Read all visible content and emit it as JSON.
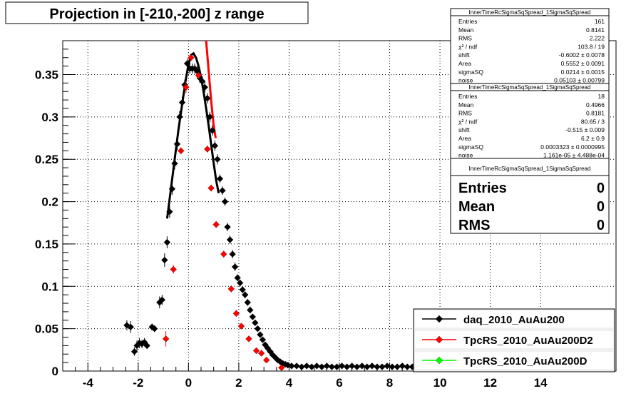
{
  "title": "Projection in [-210,-200] z range",
  "stats_boxes": [
    {
      "header": "InnerTimeRcSigmaSqSpread_1SigmaSqSpread",
      "rows": [
        {
          "label": "Entries",
          "value": "161"
        },
        {
          "label": "Mean",
          "value": "0.8141"
        },
        {
          "label": "RMS",
          "value": "2.222"
        },
        {
          "label": "χ² / ndf",
          "value": "103.8 / 19"
        },
        {
          "label": "shift",
          "value": "-0.6002 ± 0.0078"
        },
        {
          "label": "Area",
          "value": "0.5552 ± 0.0091"
        },
        {
          "label": "sigmaSQ",
          "value": "0.0214 ± 0.0015"
        },
        {
          "label": "noise",
          "value": "0.05103 ± 0.00799"
        }
      ]
    },
    {
      "header": "InnerTimeRcSigmaSqSpread_1SigmaSqSpread",
      "rows": [
        {
          "label": "Entries",
          "value": "18"
        },
        {
          "label": "Mean",
          "value": "0.4966"
        },
        {
          "label": "RMS",
          "value": "0.8181"
        },
        {
          "label": "χ² / ndf",
          "value": "80.65 / 3"
        },
        {
          "label": "shift",
          "value": "-0.515 ± 0.009"
        },
        {
          "label": "Area",
          "value": "6.2 ± 0.9"
        },
        {
          "label": "sigmaSQ",
          "value": "0.0003323 ± 0.0000995"
        },
        {
          "label": "noise",
          "value": "1.161e-05 ± 4.488e-04"
        }
      ]
    },
    {
      "header": "InnerTimeRcSigmaSqSpread_1SigmaSqSpread",
      "rows": [
        {
          "label": "Entries",
          "value": "0"
        },
        {
          "label": "Mean",
          "value": "0"
        },
        {
          "label": "RMS",
          "value": "0"
        }
      ]
    }
  ],
  "colors": {
    "black_series": "#000000",
    "red_series": "#ff0000",
    "green_series": "#00ff00",
    "fit_black": "#000000",
    "fit_red": "#ff0000",
    "grid": "#000000"
  },
  "chart_data": {
    "type": "scatter",
    "title": "Projection in [-210,-200] z range",
    "xlabel": "",
    "ylabel": "",
    "xlim": [
      -5,
      17
    ],
    "ylim": [
      0,
      0.39
    ],
    "x_ticks": [
      -4,
      -2,
      0,
      2,
      4,
      6,
      8,
      10,
      12,
      14
    ],
    "y_ticks": [
      0,
      0.05,
      0.1,
      0.15,
      0.2,
      0.25,
      0.3,
      0.35
    ],
    "y_tick_labels": [
      "0",
      "0.05",
      "0.1",
      "0.15",
      "0.2",
      "0.25",
      "0.3",
      "0.35"
    ],
    "grid": true,
    "legend_position": "bottom-right",
    "legend": [
      {
        "name": "daq_2010_AuAu200",
        "color": "#000000"
      },
      {
        "name": "TpcRS_2010_AuAu200D2",
        "color": "#ff0000"
      },
      {
        "name": "TpcRS_2010_AuAu200D",
        "color": "#00ff00"
      }
    ],
    "series": [
      {
        "name": "daq_2010_AuAu200",
        "color": "#000000",
        "points": [
          [
            -2.45,
            0.054,
            0.006
          ],
          [
            -2.3,
            0.052,
            0.007
          ],
          [
            -2.15,
            0.023,
            0.005
          ],
          [
            -2.05,
            0.03,
            0.006
          ],
          [
            -1.95,
            0.033,
            0.006
          ],
          [
            -1.85,
            0.032,
            0.005
          ],
          [
            -1.75,
            0.034,
            0.005
          ],
          [
            -1.65,
            0.03,
            0.004
          ],
          [
            -1.45,
            0.052,
            0.004
          ],
          [
            -1.35,
            0.05,
            0.004
          ],
          [
            -1.15,
            0.081,
            0.007
          ],
          [
            -1.05,
            0.084,
            0.006
          ],
          [
            -0.95,
            0.131,
            0.008
          ],
          [
            -0.85,
            0.152,
            0.007
          ],
          [
            -0.75,
            0.188,
            0.007
          ],
          [
            -0.65,
            0.215,
            0.007
          ],
          [
            -0.55,
            0.245,
            0.007
          ],
          [
            -0.45,
            0.268,
            0.007
          ],
          [
            -0.35,
            0.3,
            0.007
          ],
          [
            -0.25,
            0.317,
            0.007
          ],
          [
            -0.15,
            0.338,
            0.006
          ],
          [
            -0.05,
            0.363,
            0.006
          ],
          [
            0.05,
            0.357,
            0.006
          ],
          [
            0.15,
            0.357,
            0.006
          ],
          [
            0.25,
            0.357,
            0.006
          ],
          [
            0.35,
            0.354,
            0.006
          ],
          [
            0.45,
            0.346,
            0.006
          ],
          [
            0.55,
            0.342,
            0.006
          ],
          [
            0.65,
            0.335,
            0.006
          ],
          [
            0.75,
            0.322,
            0.006
          ],
          [
            0.85,
            0.3,
            0.006
          ],
          [
            0.95,
            0.284,
            0.006
          ],
          [
            1.05,
            0.266,
            0.006
          ],
          [
            1.15,
            0.25,
            0.006
          ],
          [
            1.25,
            0.227,
            0.005
          ],
          [
            1.35,
            0.213,
            0.005
          ],
          [
            1.45,
            0.2,
            0.005
          ],
          [
            1.55,
            0.17,
            0.005
          ],
          [
            1.65,
            0.155,
            0.005
          ],
          [
            1.75,
            0.138,
            0.005
          ],
          [
            1.85,
            0.123,
            0.005
          ],
          [
            1.95,
            0.11,
            0.004
          ],
          [
            2.05,
            0.104,
            0.004
          ],
          [
            2.15,
            0.096,
            0.004
          ],
          [
            2.25,
            0.09,
            0.004
          ],
          [
            2.35,
            0.081,
            0.004
          ],
          [
            2.45,
            0.072,
            0.004
          ],
          [
            2.55,
            0.064,
            0.003
          ],
          [
            2.65,
            0.057,
            0.003
          ],
          [
            2.75,
            0.05,
            0.003
          ],
          [
            2.85,
            0.043,
            0.003
          ],
          [
            2.95,
            0.037,
            0.003
          ],
          [
            3.05,
            0.031,
            0.003
          ],
          [
            3.15,
            0.027,
            0.003
          ],
          [
            3.25,
            0.023,
            0.002
          ],
          [
            3.35,
            0.019,
            0.002
          ],
          [
            3.45,
            0.016,
            0.002
          ],
          [
            3.55,
            0.013,
            0.002
          ],
          [
            3.65,
            0.011,
            0.002
          ],
          [
            3.75,
            0.009,
            0.002
          ],
          [
            3.85,
            0.008,
            0.002
          ],
          [
            3.95,
            0.007,
            0.002
          ],
          [
            4.1,
            0.006,
            0.002
          ],
          [
            4.3,
            0.006,
            0.002
          ],
          [
            4.5,
            0.005,
            0.002
          ],
          [
            4.7,
            0.006,
            0.002
          ],
          [
            4.9,
            0.005,
            0.002
          ],
          [
            5.1,
            0.006,
            0.002
          ],
          [
            5.3,
            0.005,
            0.002
          ],
          [
            5.5,
            0.006,
            0.002
          ],
          [
            5.7,
            0.005,
            0.002
          ],
          [
            5.9,
            0.005,
            0.002
          ],
          [
            6.1,
            0.006,
            0.002
          ],
          [
            6.3,
            0.005,
            0.002
          ],
          [
            6.5,
            0.006,
            0.002
          ],
          [
            6.7,
            0.005,
            0.002
          ],
          [
            6.9,
            0.006,
            0.002
          ],
          [
            7.1,
            0.005,
            0.002
          ],
          [
            7.3,
            0.006,
            0.002
          ],
          [
            7.5,
            0.005,
            0.002
          ],
          [
            7.7,
            0.005,
            0.002
          ],
          [
            7.9,
            0.006,
            0.002
          ],
          [
            8.1,
            0.005,
            0.002
          ],
          [
            8.3,
            0.005,
            0.002
          ],
          [
            8.5,
            0.006,
            0.002
          ],
          [
            8.7,
            0.005,
            0.002
          ],
          [
            8.9,
            0.005,
            0.002
          ],
          [
            9.1,
            0.006,
            0.002
          ],
          [
            9.3,
            0.005,
            0.002
          ]
        ]
      },
      {
        "name": "TpcRS_2010_AuAu200D2",
        "color": "#ff0000",
        "points": [
          [
            -0.9,
            0.038,
            0.009
          ],
          [
            -0.6,
            0.12,
            0.005
          ],
          [
            -0.3,
            0.26,
            0.004
          ],
          [
            -0.1,
            0.335,
            0.007
          ],
          [
            0.1,
            0.37,
            0.004
          ],
          [
            0.4,
            0.349,
            0.004
          ],
          [
            0.75,
            0.262,
            0.004
          ],
          [
            0.9,
            0.216,
            0.004
          ],
          [
            1.1,
            0.173,
            0.004
          ],
          [
            1.4,
            0.138,
            0.004
          ],
          [
            1.7,
            0.097,
            0.004
          ],
          [
            1.9,
            0.068,
            0.004
          ],
          [
            2.1,
            0.053,
            0.003
          ],
          [
            2.4,
            0.038,
            0.003
          ],
          [
            2.7,
            0.024,
            0.003
          ],
          [
            2.9,
            0.021,
            0.002
          ],
          [
            3.1,
            0.013,
            0.002
          ],
          [
            3.7,
            0.004,
            0.002
          ]
        ]
      },
      {
        "name": "TpcRS_2010_AuAu200D",
        "color": "#00ff00",
        "points": []
      }
    ],
    "fits": [
      {
        "color": "#000000",
        "curve": [
          [
            -0.85,
            0.18
          ],
          [
            -0.7,
            0.215
          ],
          [
            -0.55,
            0.25
          ],
          [
            -0.4,
            0.285
          ],
          [
            -0.25,
            0.315
          ],
          [
            -0.1,
            0.345
          ],
          [
            0.0,
            0.362
          ],
          [
            0.1,
            0.373
          ],
          [
            0.2,
            0.375
          ],
          [
            0.3,
            0.37
          ],
          [
            0.4,
            0.36
          ],
          [
            0.5,
            0.347
          ],
          [
            0.6,
            0.33
          ],
          [
            0.7,
            0.31
          ],
          [
            0.8,
            0.29
          ],
          [
            0.9,
            0.268
          ],
          [
            1.0,
            0.246
          ],
          [
            1.1,
            0.225
          ],
          [
            1.2,
            0.21
          ]
        ]
      },
      {
        "color": "#ff0000",
        "curve": [
          [
            0.7,
            0.39
          ],
          [
            0.8,
            0.355
          ],
          [
            0.9,
            0.32
          ],
          [
            1.0,
            0.29
          ],
          [
            1.08,
            0.275
          ]
        ]
      }
    ]
  }
}
